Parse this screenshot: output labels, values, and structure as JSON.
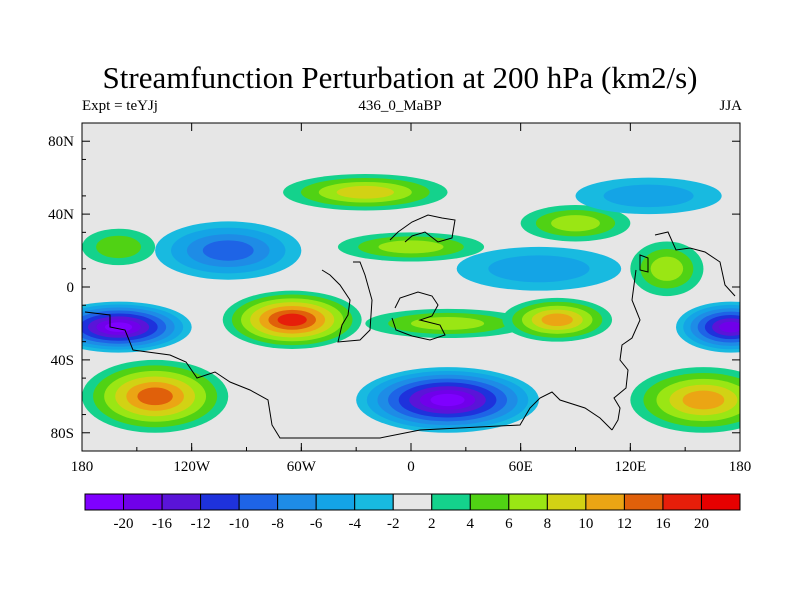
{
  "title": "Streamfunction Perturbation at 200 hPa (km2/s)",
  "subtitle_left": "Expt = teYJj",
  "subtitle_center": "436_0_MaBP",
  "subtitle_right": "JJA",
  "chart_data": {
    "type": "heatmap",
    "title": "Streamfunction Perturbation at 200 hPa (km2/s)",
    "xlim": [
      -180,
      180
    ],
    "ylim": [
      -90,
      90
    ],
    "x_ticks": [
      {
        "value": -180,
        "label": "180"
      },
      {
        "value": -120,
        "label": "120W"
      },
      {
        "value": -60,
        "label": "60W"
      },
      {
        "value": 0,
        "label": "0"
      },
      {
        "value": 60,
        "label": "60E"
      },
      {
        "value": 120,
        "label": "120E"
      },
      {
        "value": 180,
        "label": "180"
      }
    ],
    "y_ticks": [
      {
        "value": 80,
        "label": "80N"
      },
      {
        "value": 40,
        "label": "40N"
      },
      {
        "value": 0,
        "label": "0"
      },
      {
        "value": -40,
        "label": "40S"
      },
      {
        "value": -80,
        "label": "80S"
      }
    ],
    "levels": [
      -20,
      -16,
      -12,
      -10,
      -8,
      -6,
      -4,
      -2,
      2,
      4,
      6,
      8,
      10,
      12,
      16,
      20
    ],
    "level_labels": [
      "-20",
      "-16",
      "-12",
      "-10",
      "-8",
      "-6",
      "-4",
      "-2",
      "2",
      "4",
      "6",
      "8",
      "10",
      "12",
      "16",
      "20"
    ],
    "colors": [
      "#7f00ff",
      "#7000ea",
      "#5a14d8",
      "#1e32dc",
      "#1e64e6",
      "#1e8ce6",
      "#14a4e6",
      "#18bae0",
      "#e6e6e6",
      "#14d28c",
      "#50d214",
      "#9ae614",
      "#d2d214",
      "#eba514",
      "#e0600a",
      "#e61e0a",
      "#e60000"
    ],
    "field_centers": [
      {
        "lon": -160,
        "lat": -22,
        "value": -22,
        "rlon": 40,
        "rlat": 14
      },
      {
        "lon": -140,
        "lat": -60,
        "value": 12,
        "rlon": 40,
        "rlat": 20
      },
      {
        "lon": -160,
        "lat": 22,
        "value": 4,
        "rlon": 20,
        "rlat": 10
      },
      {
        "lon": -100,
        "lat": 20,
        "value": -9,
        "rlon": 40,
        "rlat": 16
      },
      {
        "lon": -65,
        "lat": -18,
        "value": 16,
        "rlon": 38,
        "rlat": 16
      },
      {
        "lon": 0,
        "lat": 22,
        "value": 6,
        "rlon": 40,
        "rlat": 8
      },
      {
        "lon": -25,
        "lat": 52,
        "value": 8,
        "rlon": 45,
        "rlat": 10
      },
      {
        "lon": 20,
        "lat": -20,
        "value": 6,
        "rlon": 45,
        "rlat": 8
      },
      {
        "lon": 20,
        "lat": -62,
        "value": -22,
        "rlon": 50,
        "rlat": 18
      },
      {
        "lon": 70,
        "lat": 10,
        "value": -6,
        "rlon": 45,
        "rlat": 12
      },
      {
        "lon": 80,
        "lat": -18,
        "value": 11,
        "rlon": 30,
        "rlat": 12
      },
      {
        "lon": 90,
        "lat": 35,
        "value": 7,
        "rlon": 30,
        "rlat": 10
      },
      {
        "lon": 130,
        "lat": 50,
        "value": -6,
        "rlon": 40,
        "rlat": 10
      },
      {
        "lon": 140,
        "lat": 10,
        "value": 6,
        "rlon": 20,
        "rlat": 15
      },
      {
        "lon": 175,
        "lat": -22,
        "value": -18,
        "rlon": 30,
        "rlat": 14
      },
      {
        "lon": 160,
        "lat": -62,
        "value": 10,
        "rlon": 40,
        "rlat": 18
      },
      {
        "lon": 40,
        "lat": 48,
        "value": -2,
        "rlon": 30,
        "rlat": 10
      }
    ]
  }
}
